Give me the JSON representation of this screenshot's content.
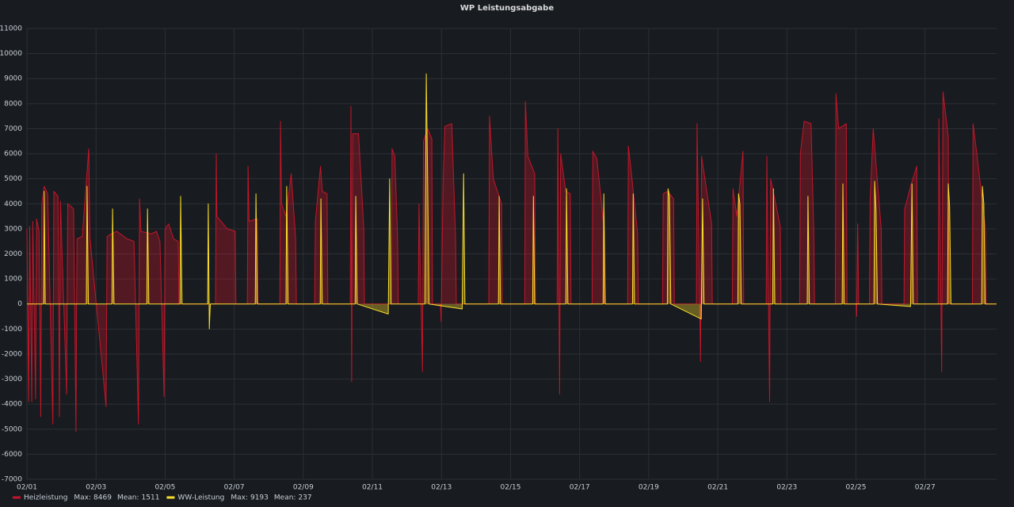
{
  "chart_data": {
    "type": "line",
    "title": "WP Leistungsabgabe",
    "xlim": [
      0,
      28.07
    ],
    "xticks": [
      {
        "value": 0,
        "label": "02/01"
      },
      {
        "value": 2,
        "label": "02/03"
      },
      {
        "value": 4,
        "label": "02/05"
      },
      {
        "value": 6,
        "label": "02/07"
      },
      {
        "value": 8,
        "label": "02/09"
      },
      {
        "value": 10,
        "label": "02/11"
      },
      {
        "value": 12,
        "label": "02/13"
      },
      {
        "value": 14,
        "label": "02/15"
      },
      {
        "value": 16,
        "label": "02/17"
      },
      {
        "value": 18,
        "label": "02/19"
      },
      {
        "value": 20,
        "label": "02/21"
      },
      {
        "value": 22,
        "label": "02/23"
      },
      {
        "value": 24,
        "label": "02/25"
      },
      {
        "value": 26,
        "label": "02/27"
      }
    ],
    "ylim": [
      -7000,
      11000
    ],
    "yticks": [
      -7000,
      -6000,
      -5000,
      -4000,
      -3000,
      -2000,
      -1000,
      0,
      1000,
      2000,
      3000,
      4000,
      5000,
      6000,
      7000,
      8000,
      9000,
      10000,
      11000
    ],
    "grid": true,
    "legend": "bottom-left",
    "fill": true,
    "series": [
      {
        "name": "Heizleistung",
        "color": "#c4162a",
        "stats": [
          {
            "label": "Max:",
            "value": 8469
          },
          {
            "label": "Mean:",
            "value": 1511
          }
        ],
        "x": [
          0,
          0.05,
          0.08,
          0.14,
          0.17,
          0.25,
          0.28,
          0.35,
          0.4,
          0.43,
          0.5,
          0.6,
          0.75,
          0.78,
          0.9,
          0.94,
          0.97,
          1.15,
          1.18,
          1.35,
          1.42,
          1.45,
          1.6,
          1.79,
          1.82,
          2.29,
          2.32,
          2.45,
          2.6,
          2.9,
          3.1,
          3.23,
          3.26,
          3.3,
          3.6,
          3.75,
          3.85,
          3.97,
          4.0,
          4.1,
          4.25,
          4.38,
          4.4,
          5.46,
          5.48,
          5.5,
          5.8,
          6.03,
          6.05,
          6.38,
          6.4,
          6.43,
          6.67,
          6.69,
          7.32,
          7.34,
          7.37,
          7.5,
          7.65,
          7.78,
          7.8,
          8.33,
          8.35,
          8.5,
          8.55,
          8.69,
          8.71,
          9.36,
          9.38,
          9.4,
          9.43,
          9.6,
          9.75,
          9.77,
          10.55,
          10.57,
          10.65,
          10.73,
          10.75,
          11.33,
          11.35,
          11.45,
          11.48,
          11.6,
          11.72,
          11.74,
          11.97,
          11.99,
          12.05,
          12.1,
          12.3,
          12.41,
          12.43,
          13.37,
          13.39,
          13.5,
          13.74,
          13.76,
          14.41,
          14.43,
          14.5,
          14.7,
          14.72,
          15.35,
          15.37,
          15.42,
          15.45,
          15.6,
          15.73,
          15.75,
          16.36,
          16.38,
          16.5,
          16.7,
          16.72,
          17.39,
          17.41,
          17.5,
          17.68,
          17.7,
          18.4,
          18.42,
          18.55,
          18.72,
          18.74,
          19.38,
          19.4,
          19.5,
          19.53,
          19.65,
          19.82,
          19.84,
          20.42,
          20.44,
          20.55,
          20.73,
          20.75,
          21.4,
          21.42,
          21.5,
          21.53,
          21.81,
          21.83,
          22.37,
          22.39,
          22.5,
          22.7,
          22.78,
          22.8,
          23.4,
          23.42,
          23.5,
          23.72,
          23.74,
          24.0,
          24.02,
          24.05,
          24.08,
          24.39,
          24.41,
          24.5,
          24.73,
          24.75,
          25.39,
          25.41,
          25.6,
          25.76,
          25.78,
          26.38,
          26.4,
          26.48,
          26.52,
          26.67,
          26.69,
          27.37,
          27.39,
          27.5,
          27.75,
          27.77,
          28.07
        ],
        "values": [
          3000,
          -3900,
          3100,
          -3900,
          3300,
          -3800,
          3400,
          2900,
          -4500,
          4000,
          4700,
          4400,
          -4800,
          4500,
          4300,
          -4500,
          4100,
          -3600,
          4000,
          3800,
          -5100,
          2600,
          2700,
          6200,
          2700,
          -4100,
          2700,
          2800,
          2900,
          2600,
          2500,
          -4800,
          4200,
          2900,
          2800,
          2900,
          2500,
          -3700,
          3000,
          3200,
          2600,
          2500,
          0,
          0,
          6000,
          3500,
          3000,
          2900,
          0,
          0,
          5500,
          3300,
          3400,
          0,
          0,
          7300,
          4000,
          3500,
          5200,
          2600,
          0,
          0,
          3300,
          5500,
          4500,
          4400,
          0,
          0,
          7900,
          -3100,
          6800,
          6800,
          3000,
          0,
          0,
          6200,
          5900,
          2600,
          0,
          0,
          4000,
          -2700,
          6500,
          7000,
          6600,
          0,
          0,
          -700,
          5000,
          7100,
          7200,
          2600,
          0,
          0,
          7500,
          5000,
          4000,
          0,
          0,
          8100,
          5900,
          5200,
          0,
          0,
          7000,
          -3600,
          6000,
          4500,
          4400,
          0,
          0,
          6100,
          5800,
          3100,
          0,
          0,
          6300,
          5200,
          2800,
          0,
          0,
          4400,
          4500,
          4200,
          0,
          0,
          7200,
          -2300,
          5900,
          4800,
          3200,
          0,
          0,
          4600,
          3500,
          6100,
          0,
          0,
          5900,
          -3900,
          5000,
          3100,
          0,
          0,
          6000,
          7300,
          7200,
          2800,
          0,
          0,
          8400,
          7000,
          7200,
          0,
          0,
          -500,
          3200,
          0,
          0,
          4200,
          7000,
          3000,
          0,
          0,
          3800,
          4800,
          5500,
          0,
          0,
          7400,
          -2700,
          8469,
          6700,
          0,
          0,
          7200,
          6000,
          3000,
          0,
          0
        ]
      },
      {
        "name": "WW-Leistung",
        "color": "#fade2a",
        "stats": [
          {
            "label": "Max:",
            "value": 9193
          },
          {
            "label": "Mean:",
            "value": 237
          }
        ],
        "x": [
          0,
          0.48,
          0.5,
          0.53,
          1.72,
          1.74,
          1.78,
          2.46,
          2.48,
          2.52,
          3.47,
          3.49,
          3.53,
          4.43,
          4.45,
          4.49,
          5.23,
          5.25,
          5.28,
          5.31,
          6.61,
          6.63,
          6.67,
          7.5,
          7.52,
          7.56,
          8.49,
          8.51,
          8.55,
          9.5,
          9.52,
          9.56,
          10.46,
          10.5,
          10.54,
          11.52,
          11.56,
          11.6,
          11.64,
          12.6,
          12.64,
          12.68,
          13.65,
          13.67,
          13.71,
          14.64,
          14.66,
          14.7,
          15.6,
          15.62,
          15.66,
          16.68,
          16.7,
          16.74,
          17.53,
          17.55,
          17.59,
          18.54,
          18.56,
          18.6,
          18.64,
          19.52,
          19.56,
          19.6,
          20.58,
          20.6,
          20.64,
          20.68,
          21.59,
          21.61,
          21.65,
          22.59,
          22.61,
          22.65,
          23.6,
          23.62,
          23.66,
          24.52,
          24.54,
          24.58,
          24.62,
          25.58,
          25.62,
          25.66,
          26.65,
          26.67,
          26.71,
          26.75,
          27.64,
          27.66,
          27.7,
          27.74,
          28.07
        ],
        "values": [
          0,
          0,
          4500,
          0,
          0,
          4700,
          0,
          0,
          3800,
          0,
          0,
          3800,
          0,
          0,
          4300,
          0,
          0,
          4000,
          -1000,
          0,
          0,
          4400,
          0,
          0,
          4700,
          0,
          0,
          4200,
          0,
          0,
          4300,
          0,
          -400,
          5000,
          0,
          0,
          9193,
          5000,
          0,
          -200,
          5200,
          0,
          0,
          4300,
          0,
          0,
          4300,
          0,
          0,
          4600,
          0,
          0,
          4400,
          0,
          0,
          4400,
          0,
          0,
          4600,
          4300,
          0,
          -600,
          4200,
          0,
          0,
          4400,
          4000,
          0,
          0,
          4600,
          0,
          0,
          4300,
          0,
          0,
          4800,
          0,
          0,
          4900,
          3800,
          0,
          -100,
          4800,
          0,
          0,
          4800,
          3900,
          0,
          0,
          4700,
          4000,
          0,
          0
        ]
      }
    ]
  }
}
